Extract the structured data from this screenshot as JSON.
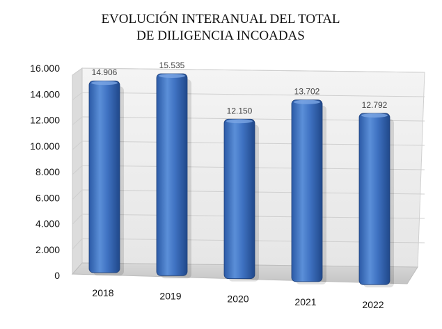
{
  "chart_data": {
    "type": "bar",
    "title_lines": [
      "EVOLUCIÓN INTERANUAL DEL TOTAL",
      "DE DILIGENCIA INCOADAS"
    ],
    "categories": [
      "2018",
      "2019",
      "2020",
      "2021",
      "2022"
    ],
    "values": [
      14906,
      15535,
      12150,
      13702,
      12792
    ],
    "data_labels": [
      "14.906",
      "15.535",
      "12.150",
      "13.702",
      "12.792"
    ],
    "y_ticks": [
      "0",
      "2.000",
      "4.000",
      "6.000",
      "8.000",
      "10.000",
      "12.000",
      "14.000",
      "16.000"
    ],
    "ylim": [
      0,
      16000
    ],
    "grid": true,
    "bar_color": "#3a6fc0"
  }
}
